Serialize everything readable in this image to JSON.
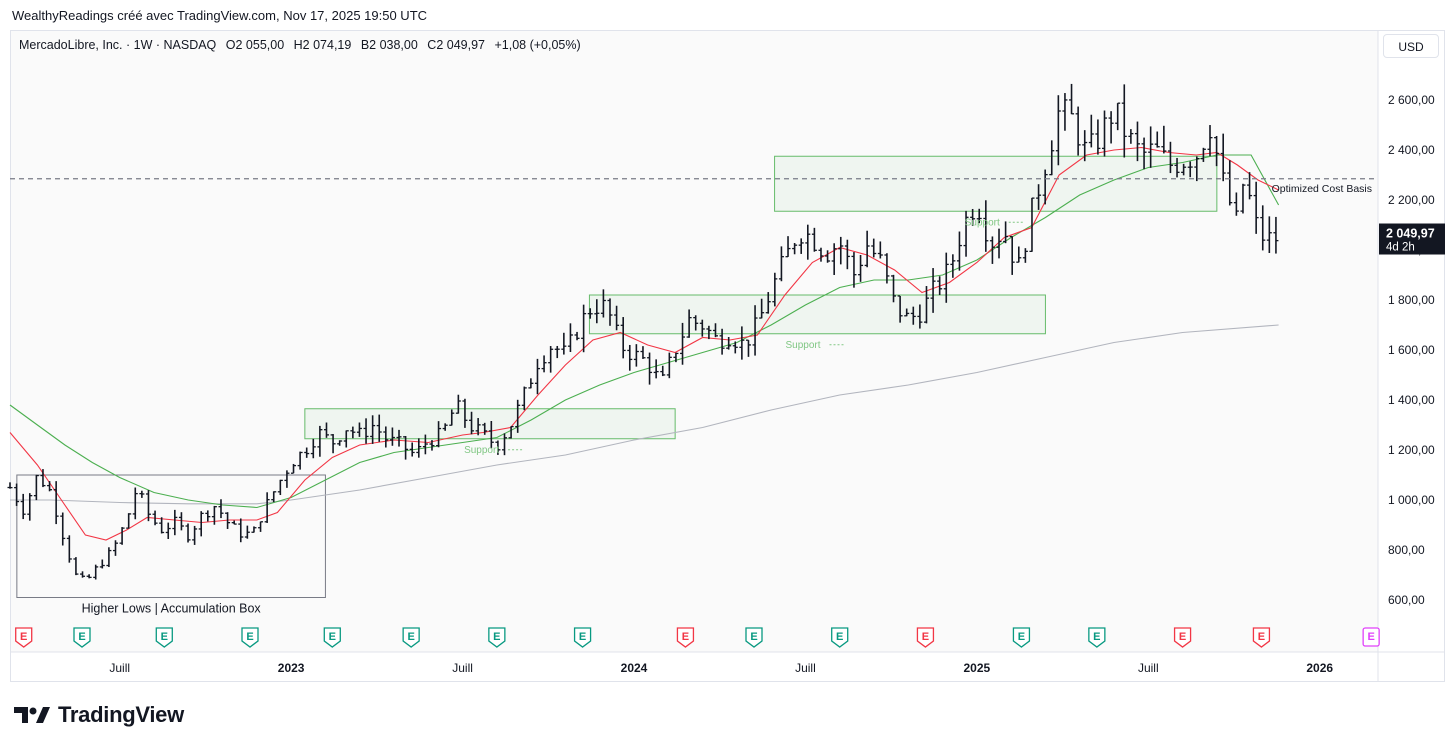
{
  "header": {
    "attribution": "WealthyReadings créé avec TradingView.com, Nov 17, 2025 19:50 UTC"
  },
  "legend": {
    "symbol": "MercadoLibre, Inc. · 1W · NASDAQ",
    "open": "O2 055,00",
    "high": "H2 074,19",
    "low": "B2 038,00",
    "close": "C2 049,97",
    "change": "+1,08 (+0,05%)"
  },
  "currency": "USD",
  "price_tag": {
    "price": "2 049,97",
    "countdown": "4d 2h"
  },
  "footer": {
    "brand": "TradingView"
  },
  "colors": {
    "sma_fast": "#f23645",
    "sma_mid": "#4caf50",
    "sma_slow": "#b2b5be",
    "earnings_up": "#089981",
    "earnings_down": "#f23645",
    "earnings_future": "#e040fb"
  },
  "chart_data": {
    "type": "ohlc",
    "y_range": [
      500,
      2760
    ],
    "y_ticks": [
      {
        "value": 600,
        "label": "600,00"
      },
      {
        "value": 800,
        "label": "800,00"
      },
      {
        "value": 1000,
        "label": "1 000,00"
      },
      {
        "value": 1200,
        "label": "1 200,00"
      },
      {
        "value": 1400,
        "label": "1 400,00"
      },
      {
        "value": 1600,
        "label": "1 600,00"
      },
      {
        "value": 1800,
        "label": "1 800,00"
      },
      {
        "value": 2000,
        "label": "2 000,00"
      },
      {
        "value": 2200,
        "label": "2 200,00"
      },
      {
        "value": 2400,
        "label": "2 400,00"
      },
      {
        "value": 2600,
        "label": "2 600,00"
      }
    ],
    "x_range": [
      2022.18,
      2026.17
    ],
    "x_ticks": [
      {
        "x": 2022.5,
        "label": "Juill",
        "bold": false
      },
      {
        "x": 2023.0,
        "label": "2023",
        "bold": true
      },
      {
        "x": 2023.5,
        "label": "Juill",
        "bold": false
      },
      {
        "x": 2024.0,
        "label": "2024",
        "bold": true
      },
      {
        "x": 2024.5,
        "label": "Juill",
        "bold": false
      },
      {
        "x": 2025.0,
        "label": "2025",
        "bold": true
      },
      {
        "x": 2025.5,
        "label": "Juill",
        "bold": false
      },
      {
        "x": 2026.0,
        "label": "2026",
        "bold": true
      }
    ],
    "price_keypoints": [
      [
        2022.18,
        1050
      ],
      [
        2022.22,
        960
      ],
      [
        2022.26,
        1100
      ],
      [
        2022.3,
        1030
      ],
      [
        2022.33,
        880
      ],
      [
        2022.37,
        700
      ],
      [
        2022.4,
        670
      ],
      [
        2022.44,
        740
      ],
      [
        2022.48,
        800
      ],
      [
        2022.52,
        920
      ],
      [
        2022.55,
        1050
      ],
      [
        2022.58,
        950
      ],
      [
        2022.62,
        880
      ],
      [
        2022.66,
        910
      ],
      [
        2022.7,
        860
      ],
      [
        2022.74,
        940
      ],
      [
        2022.78,
        980
      ],
      [
        2022.82,
        900
      ],
      [
        2022.86,
        860
      ],
      [
        2022.89,
        870
      ],
      [
        2022.92,
        960
      ],
      [
        2022.96,
        1060
      ],
      [
        2023.0,
        1150
      ],
      [
        2023.04,
        1200
      ],
      [
        2023.08,
        1270
      ],
      [
        2023.12,
        1230
      ],
      [
        2023.16,
        1290
      ],
      [
        2023.2,
        1260
      ],
      [
        2023.24,
        1300
      ],
      [
        2023.28,
        1240
      ],
      [
        2023.32,
        1220
      ],
      [
        2023.36,
        1180
      ],
      [
        2023.4,
        1240
      ],
      [
        2023.44,
        1260
      ],
      [
        2023.48,
        1380
      ],
      [
        2023.52,
        1300
      ],
      [
        2023.56,
        1260
      ],
      [
        2023.6,
        1220
      ],
      [
        2023.64,
        1300
      ],
      [
        2023.68,
        1420
      ],
      [
        2023.72,
        1560
      ],
      [
        2023.76,
        1620
      ],
      [
        2023.8,
        1580
      ],
      [
        2023.84,
        1700
      ],
      [
        2023.88,
        1780
      ],
      [
        2023.92,
        1770
      ],
      [
        2023.96,
        1620
      ],
      [
        2024.0,
        1580
      ],
      [
        2024.04,
        1550
      ],
      [
        2024.08,
        1460
      ],
      [
        2024.12,
        1600
      ],
      [
        2024.16,
        1720
      ],
      [
        2024.2,
        1700
      ],
      [
        2024.24,
        1640
      ],
      [
        2024.28,
        1660
      ],
      [
        2024.32,
        1620
      ],
      [
        2024.36,
        1700
      ],
      [
        2024.4,
        1840
      ],
      [
        2024.44,
        1960
      ],
      [
        2024.48,
        2080
      ],
      [
        2024.52,
        2050
      ],
      [
        2024.56,
        1990
      ],
      [
        2024.6,
        2030
      ],
      [
        2024.64,
        1900
      ],
      [
        2024.68,
        2020
      ],
      [
        2024.72,
        1950
      ],
      [
        2024.76,
        1780
      ],
      [
        2024.8,
        1720
      ],
      [
        2024.84,
        1760
      ],
      [
        2024.88,
        1850
      ],
      [
        2024.92,
        1920
      ],
      [
        2024.96,
        2100
      ],
      [
        2025.0,
        2200
      ],
      [
        2025.04,
        2030
      ],
      [
        2025.08,
        2080
      ],
      [
        2025.12,
        1920
      ],
      [
        2025.16,
        2150
      ],
      [
        2025.2,
        2350
      ],
      [
        2025.24,
        2560
      ],
      [
        2025.28,
        2520
      ],
      [
        2025.32,
        2380
      ],
      [
        2025.36,
        2460
      ],
      [
        2025.4,
        2560
      ],
      [
        2025.44,
        2450
      ],
      [
        2025.48,
        2380
      ],
      [
        2025.52,
        2400
      ],
      [
        2025.56,
        2340
      ],
      [
        2025.6,
        2360
      ],
      [
        2025.64,
        2380
      ],
      [
        2025.68,
        2500
      ],
      [
        2025.72,
        2260
      ],
      [
        2025.76,
        2100
      ],
      [
        2025.78,
        2300
      ],
      [
        2025.81,
        2110
      ],
      [
        2025.84,
        2040
      ],
      [
        2025.88,
        2050
      ]
    ],
    "sma_fast_points": [
      [
        2022.18,
        1270
      ],
      [
        2022.26,
        1140
      ],
      [
        2022.33,
        1000
      ],
      [
        2022.4,
        860
      ],
      [
        2022.46,
        840
      ],
      [
        2022.52,
        880
      ],
      [
        2022.58,
        930
      ],
      [
        2022.66,
        920
      ],
      [
        2022.74,
        910
      ],
      [
        2022.82,
        920
      ],
      [
        2022.9,
        920
      ],
      [
        2022.96,
        950
      ],
      [
        2023.04,
        1080
      ],
      [
        2023.12,
        1170
      ],
      [
        2023.2,
        1220
      ],
      [
        2023.3,
        1240
      ],
      [
        2023.4,
        1230
      ],
      [
        2023.5,
        1260
      ],
      [
        2023.56,
        1270
      ],
      [
        2023.64,
        1290
      ],
      [
        2023.72,
        1420
      ],
      [
        2023.8,
        1540
      ],
      [
        2023.88,
        1640
      ],
      [
        2023.96,
        1670
      ],
      [
        2024.04,
        1620
      ],
      [
        2024.12,
        1590
      ],
      [
        2024.2,
        1650
      ],
      [
        2024.28,
        1640
      ],
      [
        2024.36,
        1660
      ],
      [
        2024.44,
        1820
      ],
      [
        2024.52,
        1950
      ],
      [
        2024.6,
        2010
      ],
      [
        2024.68,
        1980
      ],
      [
        2024.76,
        1920
      ],
      [
        2024.84,
        1830
      ],
      [
        2024.92,
        1870
      ],
      [
        2025.0,
        1950
      ],
      [
        2025.08,
        2050
      ],
      [
        2025.16,
        2090
      ],
      [
        2025.24,
        2300
      ],
      [
        2025.32,
        2380
      ],
      [
        2025.4,
        2400
      ],
      [
        2025.48,
        2410
      ],
      [
        2025.56,
        2390
      ],
      [
        2025.64,
        2380
      ],
      [
        2025.7,
        2390
      ],
      [
        2025.76,
        2340
      ],
      [
        2025.82,
        2280
      ],
      [
        2025.88,
        2240
      ]
    ],
    "sma_mid_points": [
      [
        2022.18,
        1380
      ],
      [
        2022.26,
        1300
      ],
      [
        2022.34,
        1220
      ],
      [
        2022.42,
        1150
      ],
      [
        2022.5,
        1090
      ],
      [
        2022.6,
        1030
      ],
      [
        2022.7,
        1000
      ],
      [
        2022.8,
        980
      ],
      [
        2022.9,
        970
      ],
      [
        2023.0,
        1010
      ],
      [
        2023.1,
        1080
      ],
      [
        2023.2,
        1150
      ],
      [
        2023.3,
        1190
      ],
      [
        2023.4,
        1210
      ],
      [
        2023.5,
        1230
      ],
      [
        2023.6,
        1250
      ],
      [
        2023.7,
        1320
      ],
      [
        2023.8,
        1400
      ],
      [
        2023.9,
        1460
      ],
      [
        2024.0,
        1510
      ],
      [
        2024.1,
        1550
      ],
      [
        2024.2,
        1590
      ],
      [
        2024.3,
        1630
      ],
      [
        2024.4,
        1700
      ],
      [
        2024.5,
        1780
      ],
      [
        2024.6,
        1850
      ],
      [
        2024.7,
        1880
      ],
      [
        2024.8,
        1880
      ],
      [
        2024.9,
        1900
      ],
      [
        2025.0,
        1960
      ],
      [
        2025.1,
        2050
      ],
      [
        2025.2,
        2130
      ],
      [
        2025.3,
        2220
      ],
      [
        2025.4,
        2280
      ],
      [
        2025.5,
        2330
      ],
      [
        2025.6,
        2350
      ],
      [
        2025.7,
        2380
      ],
      [
        2025.8,
        2380
      ],
      [
        2025.88,
        2180
      ]
    ],
    "sma_slow_points": [
      [
        2022.18,
        1000
      ],
      [
        2022.3,
        1000
      ],
      [
        2022.5,
        990
      ],
      [
        2022.7,
        985
      ],
      [
        2022.9,
        985
      ],
      [
        2023.0,
        1000
      ],
      [
        2023.2,
        1040
      ],
      [
        2023.4,
        1090
      ],
      [
        2023.6,
        1140
      ],
      [
        2023.8,
        1180
      ],
      [
        2024.0,
        1240
      ],
      [
        2024.2,
        1290
      ],
      [
        2024.4,
        1360
      ],
      [
        2024.6,
        1420
      ],
      [
        2024.8,
        1460
      ],
      [
        2025.0,
        1510
      ],
      [
        2025.2,
        1570
      ],
      [
        2025.4,
        1630
      ],
      [
        2025.6,
        1670
      ],
      [
        2025.88,
        1700
      ]
    ],
    "cost_basis_line": {
      "value": 2285,
      "label": "Optimized Cost Basis"
    },
    "zones": [
      {
        "x0": 2022.2,
        "x1": 2023.1,
        "low": 610,
        "high": 1100,
        "kind": "box",
        "label": "Higher Lows | Accumulation Box"
      },
      {
        "x0": 2023.04,
        "x1": 2024.12,
        "low": 1245,
        "high": 1365,
        "kind": "support",
        "label": "Support"
      },
      {
        "x0": 2023.87,
        "x1": 2025.2,
        "low": 1665,
        "high": 1820,
        "kind": "support",
        "label": "Support"
      },
      {
        "x0": 2024.41,
        "x1": 2025.7,
        "low": 2155,
        "high": 2375,
        "kind": "support",
        "label": "Support"
      }
    ],
    "earnings": [
      {
        "x": 2022.22,
        "kind": "down",
        "label": "E"
      },
      {
        "x": 2022.39,
        "kind": "up",
        "label": "E"
      },
      {
        "x": 2022.63,
        "kind": "up",
        "label": "E"
      },
      {
        "x": 2022.88,
        "kind": "up",
        "label": "E"
      },
      {
        "x": 2023.12,
        "kind": "up",
        "label": "E"
      },
      {
        "x": 2023.35,
        "kind": "up",
        "label": "E"
      },
      {
        "x": 2023.6,
        "kind": "up",
        "label": "E"
      },
      {
        "x": 2023.85,
        "kind": "up",
        "label": "E"
      },
      {
        "x": 2024.15,
        "kind": "down",
        "label": "E"
      },
      {
        "x": 2024.35,
        "kind": "up",
        "label": "E"
      },
      {
        "x": 2024.6,
        "kind": "up",
        "label": "E"
      },
      {
        "x": 2024.85,
        "kind": "down",
        "label": "E"
      },
      {
        "x": 2025.13,
        "kind": "up",
        "label": "E"
      },
      {
        "x": 2025.35,
        "kind": "up",
        "label": "E"
      },
      {
        "x": 2025.6,
        "kind": "down",
        "label": "E"
      },
      {
        "x": 2025.83,
        "kind": "down",
        "label": "E"
      },
      {
        "x": 2026.15,
        "kind": "future",
        "label": "E"
      }
    ],
    "last_price": 2049.97
  }
}
